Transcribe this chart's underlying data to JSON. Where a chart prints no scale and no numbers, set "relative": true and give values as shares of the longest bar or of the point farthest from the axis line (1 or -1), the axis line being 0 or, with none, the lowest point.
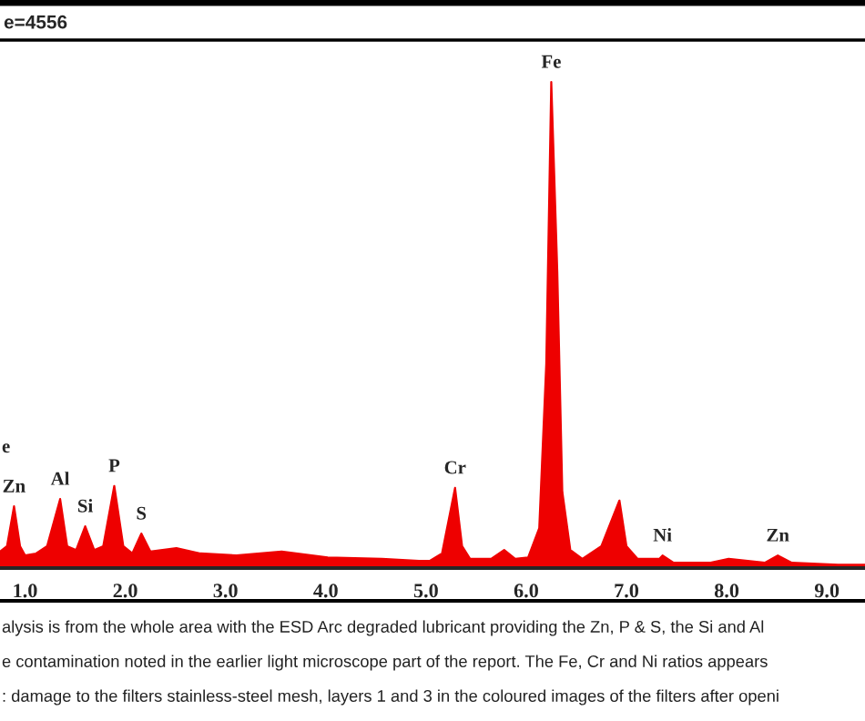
{
  "chart_data": {
    "type": "area",
    "relative": true,
    "color": "#ee0000",
    "x": [
      0.75,
      0.82,
      0.89,
      0.95,
      1.0,
      1.11,
      1.22,
      1.35,
      1.42,
      1.51,
      1.6,
      1.69,
      1.78,
      1.89,
      1.98,
      2.07,
      2.16,
      2.25,
      2.51,
      2.75,
      3.11,
      3.56,
      4.02,
      4.56,
      4.93,
      5.04,
      5.16,
      5.29,
      5.36,
      5.44,
      5.65,
      5.78,
      5.89,
      6.02,
      6.13,
      6.2,
      6.25,
      6.31,
      6.36,
      6.44,
      6.56,
      6.75,
      6.93,
      7.0,
      7.11,
      7.33,
      7.36,
      7.47,
      7.84,
      8.02,
      8.38,
      8.51,
      8.65,
      9.11,
      9.38
    ],
    "values": [
      0.034,
      0.045,
      0.127,
      0.045,
      0.026,
      0.03,
      0.045,
      0.142,
      0.045,
      0.037,
      0.086,
      0.037,
      0.045,
      0.169,
      0.045,
      0.03,
      0.071,
      0.034,
      0.041,
      0.03,
      0.026,
      0.034,
      0.022,
      0.019,
      0.015,
      0.015,
      0.03,
      0.165,
      0.045,
      0.019,
      0.019,
      0.037,
      0.019,
      0.022,
      0.082,
      0.42,
      1,
      0.61,
      0.157,
      0.037,
      0.019,
      0.045,
      0.139,
      0.045,
      0.019,
      0.019,
      0.026,
      0.011,
      0.011,
      0.019,
      0.011,
      0.026,
      0.011,
      0.007,
      0.007
    ],
    "xlim": [
      0.75,
      9.38
    ],
    "xticks": [
      {
        "value": 1,
        "label": "1.0"
      },
      {
        "value": 2,
        "label": "2.0"
      },
      {
        "value": 3,
        "label": "3.0"
      },
      {
        "value": 4,
        "label": "4.0"
      },
      {
        "value": 5,
        "label": "5.0"
      },
      {
        "value": 6,
        "label": "6.0"
      },
      {
        "value": 7,
        "label": "7.0"
      },
      {
        "value": 8,
        "label": "8.0"
      },
      {
        "value": 9,
        "label": "9.0"
      }
    ],
    "tick_labels": "x",
    "grid": false,
    "legend": false,
    "title": "e=4556",
    "annotations": [
      {
        "text": "Fe",
        "x": 6.25,
        "y": 1
      },
      {
        "text": "Cr",
        "x": 5.29,
        "y": 0.165
      },
      {
        "text": "Zn",
        "x": 0.89,
        "y": 0.127
      },
      {
        "text": "Al",
        "x": 1.35,
        "y": 0.142
      },
      {
        "text": "Si",
        "x": 1.6,
        "y": 0.086
      },
      {
        "text": "P",
        "x": 1.89,
        "y": 0.169
      },
      {
        "text": "S",
        "x": 2.16,
        "y": 0.071
      },
      {
        "text": "Ni",
        "x": 7.36,
        "y": 0.026
      },
      {
        "text": "Zn",
        "x": 8.51,
        "y": 0.026
      },
      "e",
      "alysis is from the whole area with the ESD Arc degraded lubricant providing the Zn, P & S, the Si and Al",
      "e contamination noted in the earlier light microscope part of the report. The Fe, Cr and Ni ratios appears",
      ": damage to the filters stainless-steel mesh, layers 1 and 3 in the coloured images of the filters after openi"
    ]
  }
}
